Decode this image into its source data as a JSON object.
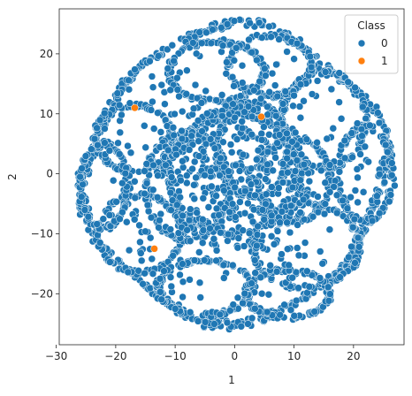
{
  "chart_data": {
    "type": "scatter",
    "xlabel": "1",
    "ylabel": "2",
    "xlim": [
      -29.5,
      28.5
    ],
    "ylim": [
      -28.5,
      27.5
    ],
    "xticks": [
      -30,
      -20,
      -10,
      0,
      10,
      20
    ],
    "yticks": [
      -20,
      -10,
      0,
      10,
      20
    ],
    "grid": false,
    "legend": {
      "title": "Class",
      "placement": "top-right"
    },
    "colors": {
      "0": "#1f77b4",
      "1": "#ff7f0e"
    },
    "series": [
      {
        "name": "0",
        "description": "dense cluster of points forming looping ring shapes around the origin",
        "approx_points": 1900
      },
      {
        "name": "1",
        "x": [
          4.5,
          -13.5,
          -16.8
        ],
        "y": [
          9.5,
          -12.5,
          11.0
        ]
      }
    ]
  }
}
